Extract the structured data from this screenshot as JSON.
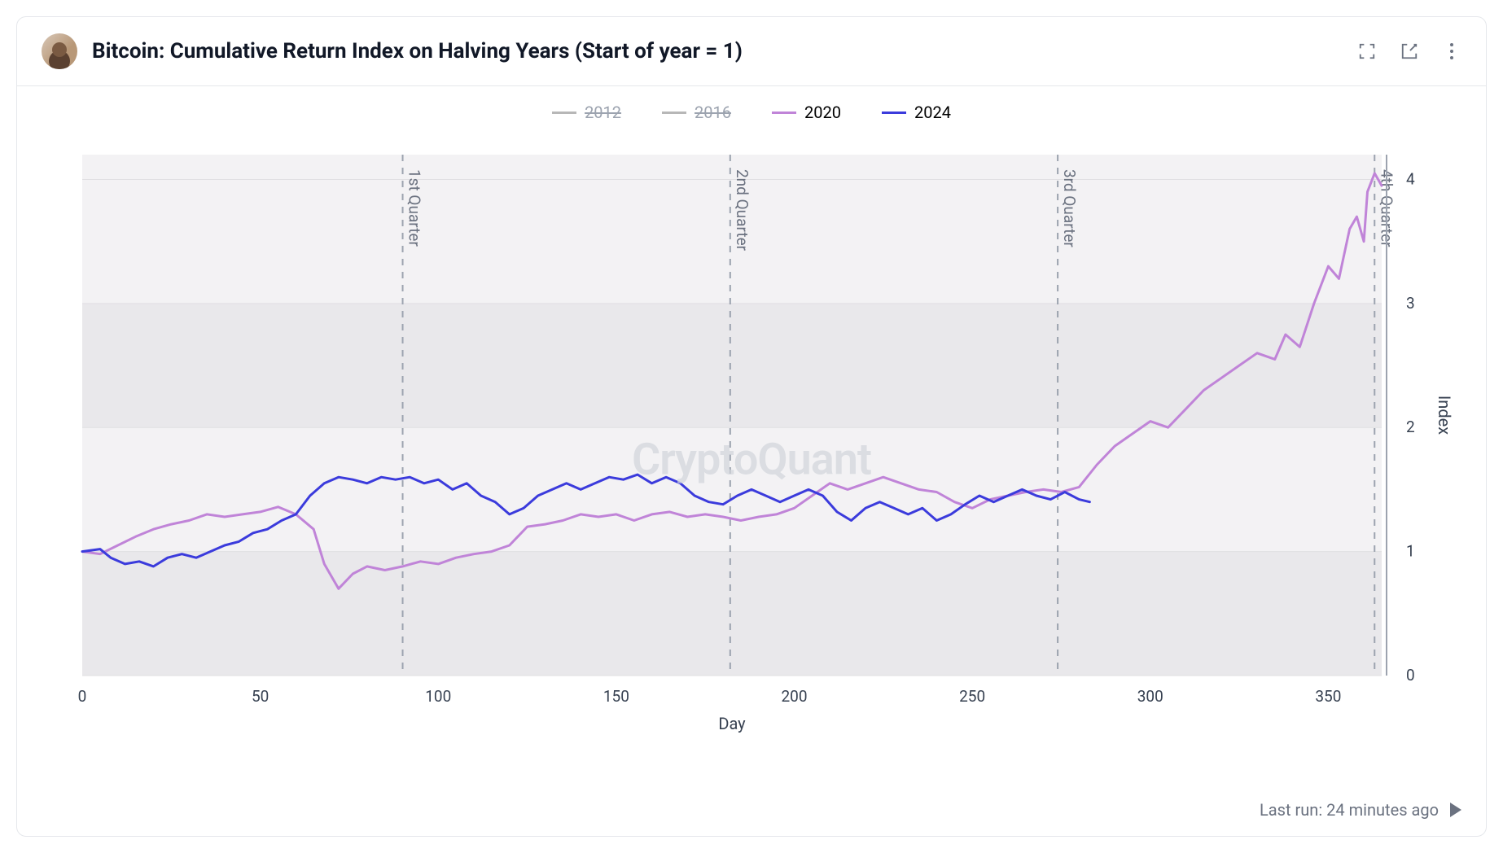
{
  "header": {
    "title": "Bitcoin: Cumulative Return Index on Halving Years (Start of year = 1)"
  },
  "footer": {
    "last_run": "Last run: 24 minutes ago"
  },
  "watermark": "CryptoQuant",
  "chart": {
    "type": "line",
    "xlabel": "Day",
    "ylabel": "Index",
    "xlim": [
      0,
      365
    ],
    "ylim": [
      0,
      4.2
    ],
    "xtick_step": 50,
    "yticks": [
      0,
      1,
      2,
      3,
      4
    ],
    "background_color": "#f3f2f4",
    "grid_color_minor": "#e9e8eb",
    "grid_color_major": "#e0dfe2",
    "axis_text_color": "#374151",
    "label_fontsize": 20,
    "tick_fontsize": 19,
    "quarter_lines": [
      {
        "x": 90,
        "label": "1st Quarter"
      },
      {
        "x": 182,
        "label": "2nd Quarter"
      },
      {
        "x": 274,
        "label": "3rd Quarter"
      },
      {
        "x": 363,
        "label": "4th Quarter"
      }
    ],
    "quarter_line_color": "#9ca3af",
    "legend": [
      {
        "label": "2012",
        "color": "#b7b7b7",
        "disabled": true
      },
      {
        "label": "2016",
        "color": "#b7b7b7",
        "disabled": true
      },
      {
        "label": "2020",
        "color": "#c084d8",
        "disabled": false
      },
      {
        "label": "2024",
        "color": "#3b3bdc",
        "disabled": false
      }
    ],
    "series": [
      {
        "name": "2020",
        "color": "#c084d8",
        "line_width": 3,
        "data": [
          [
            0,
            1.0
          ],
          [
            5,
            0.98
          ],
          [
            10,
            1.05
          ],
          [
            15,
            1.12
          ],
          [
            20,
            1.18
          ],
          [
            25,
            1.22
          ],
          [
            30,
            1.25
          ],
          [
            35,
            1.3
          ],
          [
            40,
            1.28
          ],
          [
            45,
            1.3
          ],
          [
            50,
            1.32
          ],
          [
            55,
            1.36
          ],
          [
            60,
            1.3
          ],
          [
            65,
            1.18
          ],
          [
            68,
            0.9
          ],
          [
            72,
            0.7
          ],
          [
            76,
            0.82
          ],
          [
            80,
            0.88
          ],
          [
            85,
            0.85
          ],
          [
            90,
            0.88
          ],
          [
            95,
            0.92
          ],
          [
            100,
            0.9
          ],
          [
            105,
            0.95
          ],
          [
            110,
            0.98
          ],
          [
            115,
            1.0
          ],
          [
            120,
            1.05
          ],
          [
            125,
            1.2
          ],
          [
            130,
            1.22
          ],
          [
            135,
            1.25
          ],
          [
            140,
            1.3
          ],
          [
            145,
            1.28
          ],
          [
            150,
            1.3
          ],
          [
            155,
            1.25
          ],
          [
            160,
            1.3
          ],
          [
            165,
            1.32
          ],
          [
            170,
            1.28
          ],
          [
            175,
            1.3
          ],
          [
            180,
            1.28
          ],
          [
            185,
            1.25
          ],
          [
            190,
            1.28
          ],
          [
            195,
            1.3
          ],
          [
            200,
            1.35
          ],
          [
            205,
            1.45
          ],
          [
            210,
            1.55
          ],
          [
            215,
            1.5
          ],
          [
            220,
            1.55
          ],
          [
            225,
            1.6
          ],
          [
            230,
            1.55
          ],
          [
            235,
            1.5
          ],
          [
            240,
            1.48
          ],
          [
            245,
            1.4
          ],
          [
            250,
            1.35
          ],
          [
            255,
            1.42
          ],
          [
            260,
            1.45
          ],
          [
            265,
            1.48
          ],
          [
            270,
            1.5
          ],
          [
            275,
            1.48
          ],
          [
            280,
            1.52
          ],
          [
            285,
            1.7
          ],
          [
            290,
            1.85
          ],
          [
            295,
            1.95
          ],
          [
            300,
            2.05
          ],
          [
            305,
            2.0
          ],
          [
            310,
            2.15
          ],
          [
            315,
            2.3
          ],
          [
            320,
            2.4
          ],
          [
            325,
            2.5
          ],
          [
            330,
            2.6
          ],
          [
            335,
            2.55
          ],
          [
            338,
            2.75
          ],
          [
            342,
            2.65
          ],
          [
            346,
            3.0
          ],
          [
            350,
            3.3
          ],
          [
            353,
            3.2
          ],
          [
            356,
            3.6
          ],
          [
            358,
            3.7
          ],
          [
            360,
            3.5
          ],
          [
            361,
            3.9
          ],
          [
            363,
            4.05
          ],
          [
            365,
            3.95
          ]
        ]
      },
      {
        "name": "2024",
        "color": "#3b3bdc",
        "line_width": 3,
        "data": [
          [
            0,
            1.0
          ],
          [
            5,
            1.02
          ],
          [
            8,
            0.95
          ],
          [
            12,
            0.9
          ],
          [
            16,
            0.92
          ],
          [
            20,
            0.88
          ],
          [
            24,
            0.95
          ],
          [
            28,
            0.98
          ],
          [
            32,
            0.95
          ],
          [
            36,
            1.0
          ],
          [
            40,
            1.05
          ],
          [
            44,
            1.08
          ],
          [
            48,
            1.15
          ],
          [
            52,
            1.18
          ],
          [
            56,
            1.25
          ],
          [
            60,
            1.3
          ],
          [
            64,
            1.45
          ],
          [
            68,
            1.55
          ],
          [
            72,
            1.6
          ],
          [
            76,
            1.58
          ],
          [
            80,
            1.55
          ],
          [
            84,
            1.6
          ],
          [
            88,
            1.58
          ],
          [
            92,
            1.6
          ],
          [
            96,
            1.55
          ],
          [
            100,
            1.58
          ],
          [
            104,
            1.5
          ],
          [
            108,
            1.55
          ],
          [
            112,
            1.45
          ],
          [
            116,
            1.4
          ],
          [
            120,
            1.3
          ],
          [
            124,
            1.35
          ],
          [
            128,
            1.45
          ],
          [
            132,
            1.5
          ],
          [
            136,
            1.55
          ],
          [
            140,
            1.5
          ],
          [
            144,
            1.55
          ],
          [
            148,
            1.6
          ],
          [
            152,
            1.58
          ],
          [
            156,
            1.62
          ],
          [
            160,
            1.55
          ],
          [
            164,
            1.6
          ],
          [
            168,
            1.55
          ],
          [
            172,
            1.45
          ],
          [
            176,
            1.4
          ],
          [
            180,
            1.38
          ],
          [
            184,
            1.45
          ],
          [
            188,
            1.5
          ],
          [
            192,
            1.45
          ],
          [
            196,
            1.4
          ],
          [
            200,
            1.45
          ],
          [
            204,
            1.5
          ],
          [
            208,
            1.45
          ],
          [
            212,
            1.32
          ],
          [
            216,
            1.25
          ],
          [
            220,
            1.35
          ],
          [
            224,
            1.4
          ],
          [
            228,
            1.35
          ],
          [
            232,
            1.3
          ],
          [
            236,
            1.35
          ],
          [
            240,
            1.25
          ],
          [
            244,
            1.3
          ],
          [
            248,
            1.38
          ],
          [
            252,
            1.45
          ],
          [
            256,
            1.4
          ],
          [
            260,
            1.45
          ],
          [
            264,
            1.5
          ],
          [
            268,
            1.45
          ],
          [
            272,
            1.42
          ],
          [
            276,
            1.48
          ],
          [
            280,
            1.42
          ],
          [
            283,
            1.4
          ]
        ]
      }
    ]
  }
}
